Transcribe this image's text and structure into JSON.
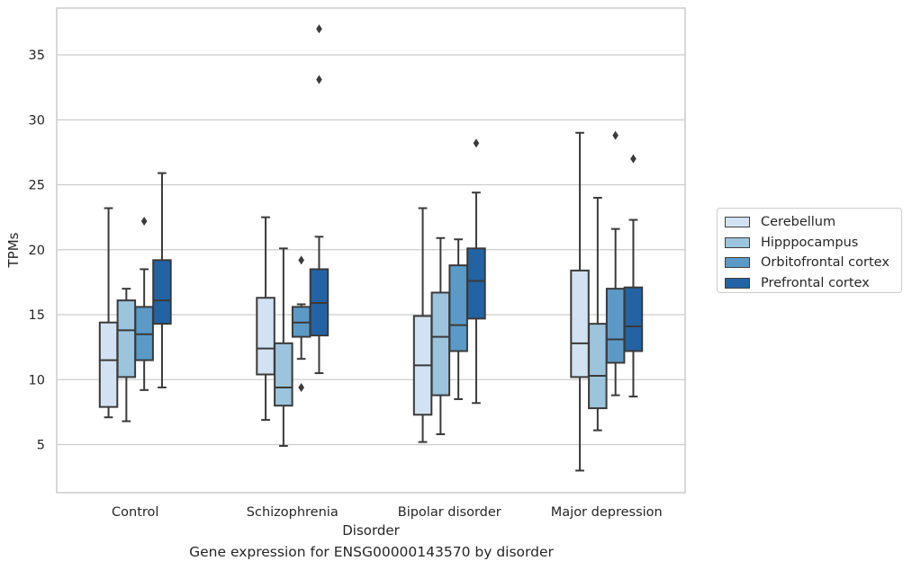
{
  "chart_data": {
    "type": "box",
    "caption": "Gene expression for ENSG00000143570 by disorder",
    "xlabel": "Disorder",
    "ylabel": "TPMs",
    "ylim": [
      1.3,
      38.6
    ],
    "yticks": [
      5,
      10,
      15,
      20,
      25,
      30,
      35
    ],
    "grid": "horizontal",
    "legend_position": "right",
    "categories": [
      "Control",
      "Schizophrenia",
      "Bipolar disorder",
      "Major depression"
    ],
    "series": [
      {
        "name": "Cerebellum",
        "color": "#d2e2f2",
        "boxes": [
          {
            "whisker_low": 7.1,
            "q1": 7.9,
            "median": 11.5,
            "q3": 14.4,
            "whisker_high": 23.2,
            "outliers": []
          },
          {
            "whisker_low": 6.9,
            "q1": 10.4,
            "median": 12.4,
            "q3": 16.3,
            "whisker_high": 22.5,
            "outliers": []
          },
          {
            "whisker_low": 5.2,
            "q1": 7.3,
            "median": 11.1,
            "q3": 14.9,
            "whisker_high": 23.2,
            "outliers": []
          },
          {
            "whisker_low": 3.0,
            "q1": 10.2,
            "median": 12.8,
            "q3": 18.4,
            "whisker_high": 29.0,
            "outliers": []
          }
        ]
      },
      {
        "name": "Hipppocampus",
        "color": "#9dc4dd",
        "boxes": [
          {
            "whisker_low": 6.8,
            "q1": 10.2,
            "median": 13.8,
            "q3": 16.1,
            "whisker_high": 17.0,
            "outliers": []
          },
          {
            "whisker_low": 4.9,
            "q1": 8.0,
            "median": 9.4,
            "q3": 12.8,
            "whisker_high": 20.1,
            "outliers": []
          },
          {
            "whisker_low": 5.8,
            "q1": 8.8,
            "median": 13.3,
            "q3": 16.7,
            "whisker_high": 20.9,
            "outliers": []
          },
          {
            "whisker_low": 6.1,
            "q1": 7.8,
            "median": 10.3,
            "q3": 14.3,
            "whisker_high": 24.0,
            "outliers": []
          }
        ]
      },
      {
        "name": "Orbitofrontal cortex",
        "color": "#5b9ac7",
        "boxes": [
          {
            "whisker_low": 9.2,
            "q1": 11.5,
            "median": 13.5,
            "q3": 15.6,
            "whisker_high": 18.5,
            "outliers": [
              22.2
            ]
          },
          {
            "whisker_low": 11.6,
            "q1": 13.3,
            "median": 14.4,
            "q3": 15.6,
            "whisker_high": 15.8,
            "outliers": [
              19.2,
              9.4
            ]
          },
          {
            "whisker_low": 8.5,
            "q1": 12.2,
            "median": 14.2,
            "q3": 18.8,
            "whisker_high": 20.8,
            "outliers": []
          },
          {
            "whisker_low": 8.8,
            "q1": 11.3,
            "median": 13.1,
            "q3": 17.0,
            "whisker_high": 21.6,
            "outliers": [
              28.8
            ]
          }
        ]
      },
      {
        "name": "Prefrontal cortex",
        "color": "#2463a3",
        "boxes": [
          {
            "whisker_low": 9.4,
            "q1": 14.3,
            "median": 16.1,
            "q3": 19.2,
            "whisker_high": 25.9,
            "outliers": []
          },
          {
            "whisker_low": 10.5,
            "q1": 13.4,
            "median": 15.9,
            "q3": 18.5,
            "whisker_high": 21.0,
            "outliers": [
              37.0,
              33.1
            ]
          },
          {
            "whisker_low": 8.2,
            "q1": 14.7,
            "median": 17.6,
            "q3": 20.1,
            "whisker_high": 24.4,
            "outliers": [
              28.2
            ]
          },
          {
            "whisker_low": 8.7,
            "q1": 12.2,
            "median": 14.1,
            "q3": 17.1,
            "whisker_high": 22.3,
            "outliers": [
              27.0
            ]
          }
        ]
      }
    ]
  }
}
